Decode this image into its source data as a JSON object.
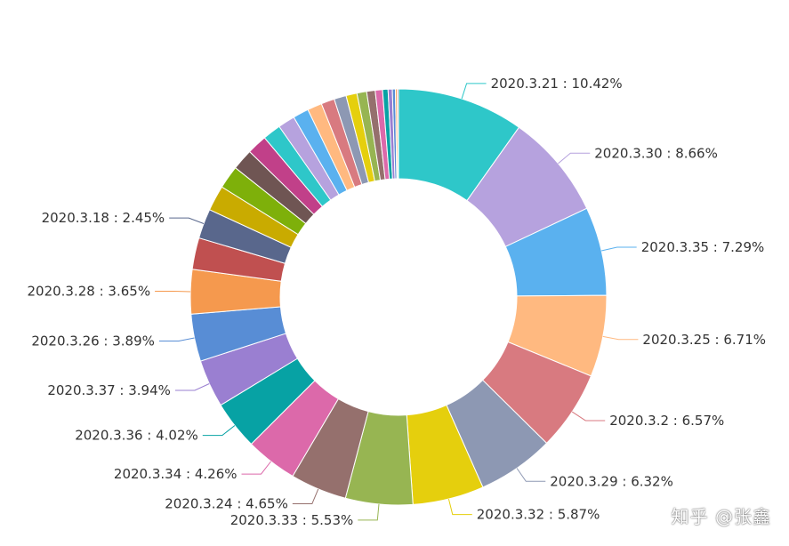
{
  "chart_data": {
    "type": "pie",
    "style": "donut",
    "labeled_slices": [
      {
        "label": "2020.3.21 : 10.42%",
        "value": 10.42,
        "color": "#2ec7c9",
        "show_label": true
      },
      {
        "label": "2020.3.30 : 8.66%",
        "value": 8.66,
        "color": "#b6a2de",
        "show_label": true
      },
      {
        "label": "2020.3.35 : 7.29%",
        "value": 7.29,
        "color": "#5ab1ef",
        "show_label": true
      },
      {
        "label": "2020.3.25 : 6.71%",
        "value": 6.71,
        "color": "#ffb980",
        "show_label": true
      },
      {
        "label": "2020.3.2 : 6.57%",
        "value": 6.57,
        "color": "#d87a80",
        "show_label": true
      },
      {
        "label": "2020.3.29 : 6.32%",
        "value": 6.32,
        "color": "#8d98b3",
        "show_label": true
      },
      {
        "label": "2020.3.32 : 5.87%",
        "value": 5.87,
        "color": "#e5cf0d",
        "show_label": true
      },
      {
        "label": "2020.3.33 : 5.53%",
        "value": 5.53,
        "color": "#97b552",
        "show_label": true
      },
      {
        "label": "2020.3.24 : 4.65%",
        "value": 4.65,
        "color": "#95706d",
        "show_label": true
      },
      {
        "label": "2020.3.34 : 4.26%",
        "value": 4.26,
        "color": "#dc69aa",
        "show_label": true
      },
      {
        "label": "2020.3.36 : 4.02%",
        "value": 4.02,
        "color": "#07a2a4",
        "show_label": true
      },
      {
        "label": "2020.3.37 : 3.94%",
        "value": 3.94,
        "color": "#9a7fd1",
        "show_label": true
      },
      {
        "label": "2020.3.26 : 3.89%",
        "value": 3.89,
        "color": "#588dd5",
        "show_label": true
      },
      {
        "label": "2020.3.28 : 3.65%",
        "value": 3.65,
        "color": "#f5994e",
        "show_label": true
      },
      {
        "label": "",
        "value": 2.6,
        "color": "#c05050",
        "show_label": false
      },
      {
        "label": "2020.3.18 : 2.45%",
        "value": 2.45,
        "color": "#59678c",
        "show_label": true
      }
    ],
    "small_slices": [
      {
        "value": 2.1,
        "color": "#c9ab00"
      },
      {
        "value": 1.9,
        "color": "#7eb00a"
      },
      {
        "value": 1.75,
        "color": "#6f5553"
      },
      {
        "value": 1.65,
        "color": "#c14089"
      },
      {
        "value": 1.5,
        "color": "#2ec7c9"
      },
      {
        "value": 1.4,
        "color": "#b6a2de"
      },
      {
        "value": 1.3,
        "color": "#5ab1ef"
      },
      {
        "value": 1.2,
        "color": "#ffb980"
      },
      {
        "value": 1.1,
        "color": "#d87a80"
      },
      {
        "value": 1.0,
        "color": "#8d98b3"
      },
      {
        "value": 0.9,
        "color": "#e5cf0d"
      },
      {
        "value": 0.8,
        "color": "#97b552"
      },
      {
        "value": 0.7,
        "color": "#95706d"
      },
      {
        "value": 0.6,
        "color": "#dc69aa"
      },
      {
        "value": 0.45,
        "color": "#07a2a4"
      },
      {
        "value": 0.35,
        "color": "#9a7fd1"
      },
      {
        "value": 0.25,
        "color": "#588dd5"
      },
      {
        "value": 0.15,
        "color": "#f5994e"
      },
      {
        "value": 0.1,
        "color": "#c05050"
      }
    ]
  },
  "watermark": "知乎 @张鑫"
}
